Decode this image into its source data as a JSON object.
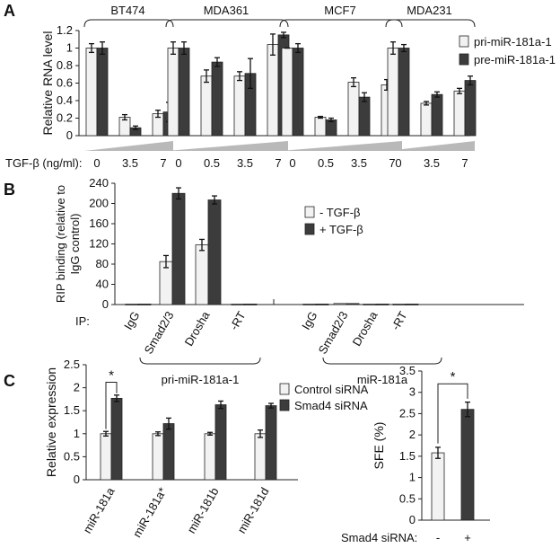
{
  "colors": {
    "light": "#f2f2f2",
    "dark": "#3c3c3c",
    "wedge": "#b9b9b9",
    "axis": "#222222"
  },
  "chart_data": [
    {
      "panel": "A",
      "type": "bar",
      "ylabel": "Relative RNA level",
      "ylim": [
        0,
        1.2
      ],
      "yticks": [
        "0",
        "0.2",
        "0.4",
        "0.6",
        "0.8",
        "1",
        "1.2"
      ],
      "xlabel": "TGF-β (ng/ml):",
      "legend": [
        "pri-miR-181a-1",
        "pre-miR-181a-1"
      ],
      "groups": [
        {
          "name": "BT474",
          "doses": [
            "0",
            "3.5",
            "7"
          ],
          "pri": [
            1.0,
            0.21,
            0.25
          ],
          "pre": [
            1.0,
            0.09,
            0.27
          ],
          "pri_err": [
            0.05,
            0.03,
            0.04
          ],
          "pre_err": [
            0.07,
            0.02,
            0.11
          ]
        },
        {
          "name": "MDA361",
          "doses": [
            "0",
            "0.5",
            "3.5",
            "7"
          ],
          "pri": [
            1.0,
            0.68,
            0.68,
            1.04
          ],
          "pre": [
            1.0,
            0.84,
            0.71,
            1.15
          ],
          "pri_err": [
            0.07,
            0.07,
            0.05,
            0.12
          ],
          "pre_err": [
            0.07,
            0.05,
            0.17,
            0.03
          ]
        },
        {
          "name": "MCF7",
          "doses": [
            "0",
            "0.5",
            "3.5",
            "7"
          ],
          "pri": [
            1.0,
            0.21,
            0.61,
            0.58
          ],
          "pre": [
            1.0,
            0.18,
            0.44,
            0.33
          ],
          "pri_err": [
            0.0,
            0.01,
            0.05,
            0.06
          ],
          "pre_err": [
            0.05,
            0.02,
            0.05,
            0.05
          ]
        },
        {
          "name": "MDA231",
          "doses": [
            "0",
            "3.5",
            "7"
          ],
          "pri": [
            1.0,
            0.37,
            0.51
          ],
          "pre": [
            1.0,
            0.47,
            0.63
          ],
          "pri_err": [
            0.07,
            0.02,
            0.03
          ],
          "pre_err": [
            0.04,
            0.03,
            0.05
          ]
        }
      ]
    },
    {
      "panel": "B",
      "type": "bar",
      "ylabel_lines": [
        "RIP binding (relative to",
        "IgG control)"
      ],
      "ylim": [
        0,
        240
      ],
      "yticks": [
        "0",
        "40",
        "80",
        "120",
        "160",
        "200",
        "240"
      ],
      "legend": [
        "- TGF-β",
        "+ TGF-β"
      ],
      "ip_label": "IP:",
      "categories": [
        "IgG",
        "Smad2/3",
        "Drosha",
        "-RT"
      ],
      "groups": [
        {
          "name": "pri-miR-181a-1",
          "minus": [
            1,
            85,
            118,
            1
          ],
          "plus": [
            1,
            220,
            207,
            1
          ],
          "minus_err": [
            0,
            12,
            11,
            0
          ],
          "plus_err": [
            0,
            11,
            8,
            0
          ]
        },
        {
          "name": "miR-181a",
          "minus": [
            1,
            2,
            1,
            1
          ],
          "plus": [
            1,
            2,
            1,
            1
          ],
          "minus_err": [
            0,
            0,
            0,
            0
          ],
          "plus_err": [
            0,
            0,
            0,
            0
          ]
        }
      ]
    },
    {
      "panel": "C",
      "type": "bar",
      "ylabel": "Relative expression",
      "ylim": [
        0,
        2.5
      ],
      "yticks": [
        "0",
        "0.5",
        "1",
        "1.5",
        "2",
        "2.5"
      ],
      "legend": [
        "Control siRNA",
        "Smad4 siRNA"
      ],
      "categories": [
        "miR-181a",
        "miR-181a*",
        "miR-181b",
        "miR-181d"
      ],
      "control": [
        1.0,
        1.0,
        1.0,
        1.0
      ],
      "smad4": [
        1.77,
        1.22,
        1.63,
        1.61
      ],
      "control_err": [
        0.05,
        0.04,
        0.03,
        0.08
      ],
      "smad4_err": [
        0.07,
        0.12,
        0.08,
        0.05
      ],
      "significance": "*"
    },
    {
      "panel": "C-right",
      "type": "bar",
      "ylabel": "SFE (%)",
      "ylim": [
        0,
        3.5
      ],
      "yticks": [
        "0",
        "0.5",
        "1",
        "1.5",
        "2",
        "2.5",
        "3",
        "3.5"
      ],
      "xlabel": "Smad4 siRNA:",
      "categories": [
        "-",
        "+"
      ],
      "values": [
        1.58,
        2.6
      ],
      "errors": [
        0.13,
        0.17
      ],
      "significance": "*"
    }
  ]
}
